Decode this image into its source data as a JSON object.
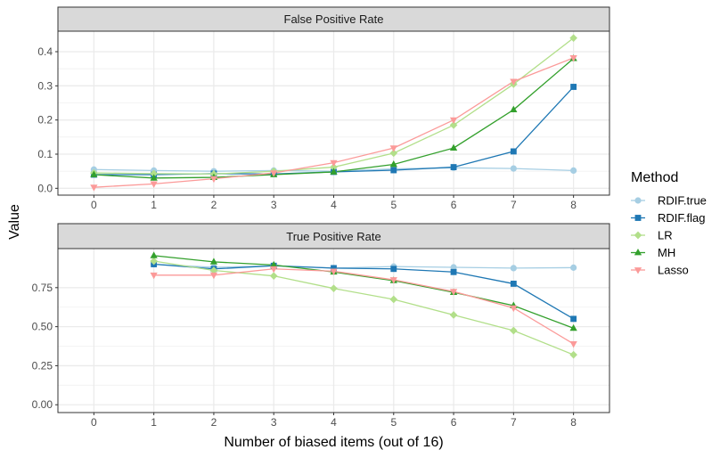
{
  "chart_data": {
    "type": "line",
    "ylabel": "Value",
    "xlabel": "Number of biased items (out of 16)",
    "x_ticks": [
      "0",
      "1",
      "2",
      "3",
      "4",
      "5",
      "6",
      "7",
      "8"
    ],
    "xlim": [
      -0.6,
      8.6
    ],
    "legend": {
      "title": "Method",
      "position": "right",
      "entries": [
        {
          "name": "RDIF.true",
          "color": "#a6cee3",
          "shape": "circle"
        },
        {
          "name": "RDIF.flag",
          "color": "#1f78b4",
          "shape": "square"
        },
        {
          "name": "LR",
          "color": "#b2df8a",
          "shape": "diamond"
        },
        {
          "name": "MH",
          "color": "#33a02c",
          "shape": "triangle-up"
        },
        {
          "name": "Lasso",
          "color": "#fb9a99",
          "shape": "triangle-down"
        }
      ]
    },
    "panels": [
      {
        "title": "False Positive Rate",
        "ylim": [
          -0.02,
          0.46
        ],
        "y_ticks": [
          {
            "value": 0.0,
            "label": "0.0"
          },
          {
            "value": 0.1,
            "label": "0.1"
          },
          {
            "value": 0.2,
            "label": "0.2"
          },
          {
            "value": 0.3,
            "label": "0.3"
          },
          {
            "value": 0.4,
            "label": "0.4"
          }
        ],
        "series": [
          {
            "name": "RDIF.true",
            "x": [
              0,
              1,
              2,
              3,
              4,
              5,
              6,
              7,
              8
            ],
            "values": [
              0.055,
              0.052,
              0.05,
              0.052,
              0.05,
              0.057,
              0.06,
              0.058,
              0.052
            ]
          },
          {
            "name": "RDIF.flag",
            "x": [
              0,
              1,
              2,
              3,
              4,
              5,
              6,
              7,
              8
            ],
            "values": [
              0.04,
              0.04,
              0.043,
              0.042,
              0.048,
              0.053,
              0.062,
              0.108,
              0.297
            ]
          },
          {
            "name": "LR",
            "x": [
              0,
              1,
              2,
              3,
              4,
              5,
              6,
              7,
              8
            ],
            "values": [
              0.045,
              0.043,
              0.042,
              0.05,
              0.062,
              0.103,
              0.185,
              0.305,
              0.44
            ]
          },
          {
            "name": "MH",
            "x": [
              0,
              1,
              2,
              3,
              4,
              5,
              6,
              7,
              8
            ],
            "values": [
              0.04,
              0.03,
              0.032,
              0.04,
              0.048,
              0.07,
              0.118,
              0.23,
              0.38
            ]
          },
          {
            "name": "Lasso",
            "x": [
              0,
              1,
              2,
              3,
              4,
              5,
              6,
              7,
              8
            ],
            "values": [
              0.003,
              0.013,
              0.028,
              0.045,
              0.075,
              0.118,
              0.2,
              0.313,
              0.382
            ]
          }
        ]
      },
      {
        "title": "True Positive Rate",
        "ylim": [
          -0.05,
          1.0
        ],
        "y_ticks": [
          {
            "value": 0.0,
            "label": "0.00"
          },
          {
            "value": 0.25,
            "label": "0.25"
          },
          {
            "value": 0.5,
            "label": "0.50"
          },
          {
            "value": 0.75,
            "label": "0.75"
          }
        ],
        "series": [
          {
            "name": "RDIF.true",
            "x": [
              1,
              2,
              3,
              4,
              5,
              6,
              7,
              8
            ],
            "values": [
              0.9,
              0.88,
              0.89,
              0.875,
              0.885,
              0.88,
              0.875,
              0.878
            ]
          },
          {
            "name": "RDIF.flag",
            "x": [
              1,
              2,
              3,
              4,
              5,
              6,
              7,
              8
            ],
            "values": [
              0.9,
              0.87,
              0.89,
              0.875,
              0.87,
              0.85,
              0.775,
              0.55
            ]
          },
          {
            "name": "LR",
            "x": [
              1,
              2,
              3,
              4,
              5,
              6,
              7,
              8
            ],
            "values": [
              0.92,
              0.86,
              0.825,
              0.745,
              0.675,
              0.575,
              0.475,
              0.32
            ]
          },
          {
            "name": "MH",
            "x": [
              1,
              2,
              3,
              4,
              5,
              6,
              7,
              8
            ],
            "values": [
              0.955,
              0.915,
              0.895,
              0.85,
              0.795,
              0.72,
              0.635,
              0.49
            ]
          },
          {
            "name": "Lasso",
            "x": [
              1,
              2,
              3,
              4,
              5,
              6,
              7,
              8
            ],
            "values": [
              0.83,
              0.83,
              0.87,
              0.855,
              0.8,
              0.725,
              0.62,
              0.39
            ]
          }
        ]
      }
    ]
  }
}
